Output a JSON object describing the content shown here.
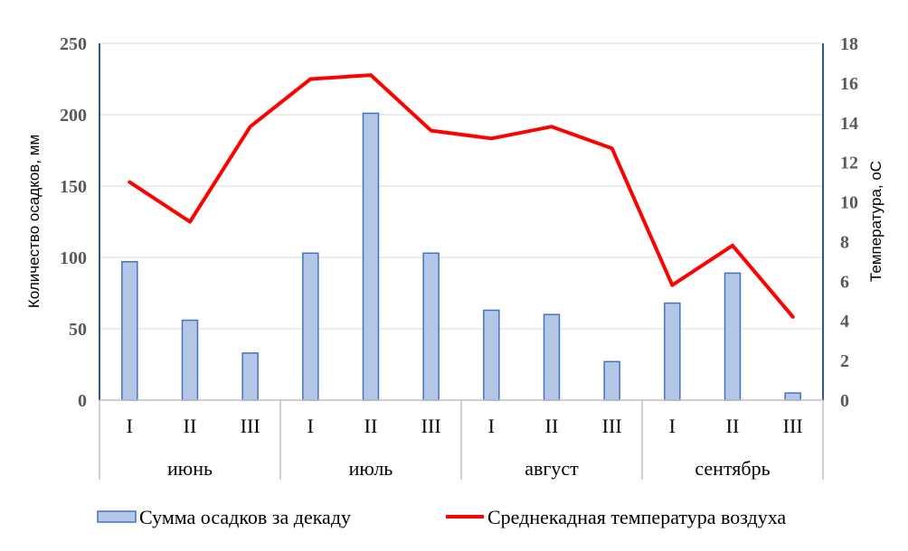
{
  "chart_data": {
    "type": "bar+line",
    "y_left_label": "Количество осадков, мм",
    "y_right_label": "Температура, оС",
    "y_left_lim": [
      0,
      250
    ],
    "y_left_ticks": [
      "0",
      "50",
      "100",
      "150",
      "200",
      "250"
    ],
    "y_right_lim": [
      0,
      18
    ],
    "y_right_ticks": [
      "0",
      "2",
      "4",
      "6",
      "8",
      "10",
      "12",
      "14",
      "16",
      "18"
    ],
    "groups": [
      {
        "name": "июнь",
        "decades": [
          "I",
          "II",
          "III"
        ]
      },
      {
        "name": "июль",
        "decades": [
          "I",
          "II",
          "III"
        ]
      },
      {
        "name": "август",
        "decades": [
          "I",
          "II",
          "III"
        ]
      },
      {
        "name": "сентябрь",
        "decades": [
          "I",
          "II",
          "III"
        ]
      }
    ],
    "series": [
      {
        "name": "Сумма осадков за декаду",
        "type": "bar",
        "axis": "left",
        "color": "#b4c7e7",
        "edge_color": "#4472c4",
        "values": [
          97,
          56,
          33,
          103,
          201,
          103,
          63,
          60,
          27,
          68,
          89,
          5
        ]
      },
      {
        "name": "Среднекадная температура воздуха",
        "type": "line",
        "axis": "right",
        "color": "#ff0000",
        "values": [
          11.0,
          9.0,
          13.8,
          16.2,
          16.4,
          13.6,
          13.2,
          13.8,
          12.7,
          5.8,
          7.8,
          4.2
        ]
      }
    ],
    "grid": true,
    "legend_position": "bottom"
  }
}
